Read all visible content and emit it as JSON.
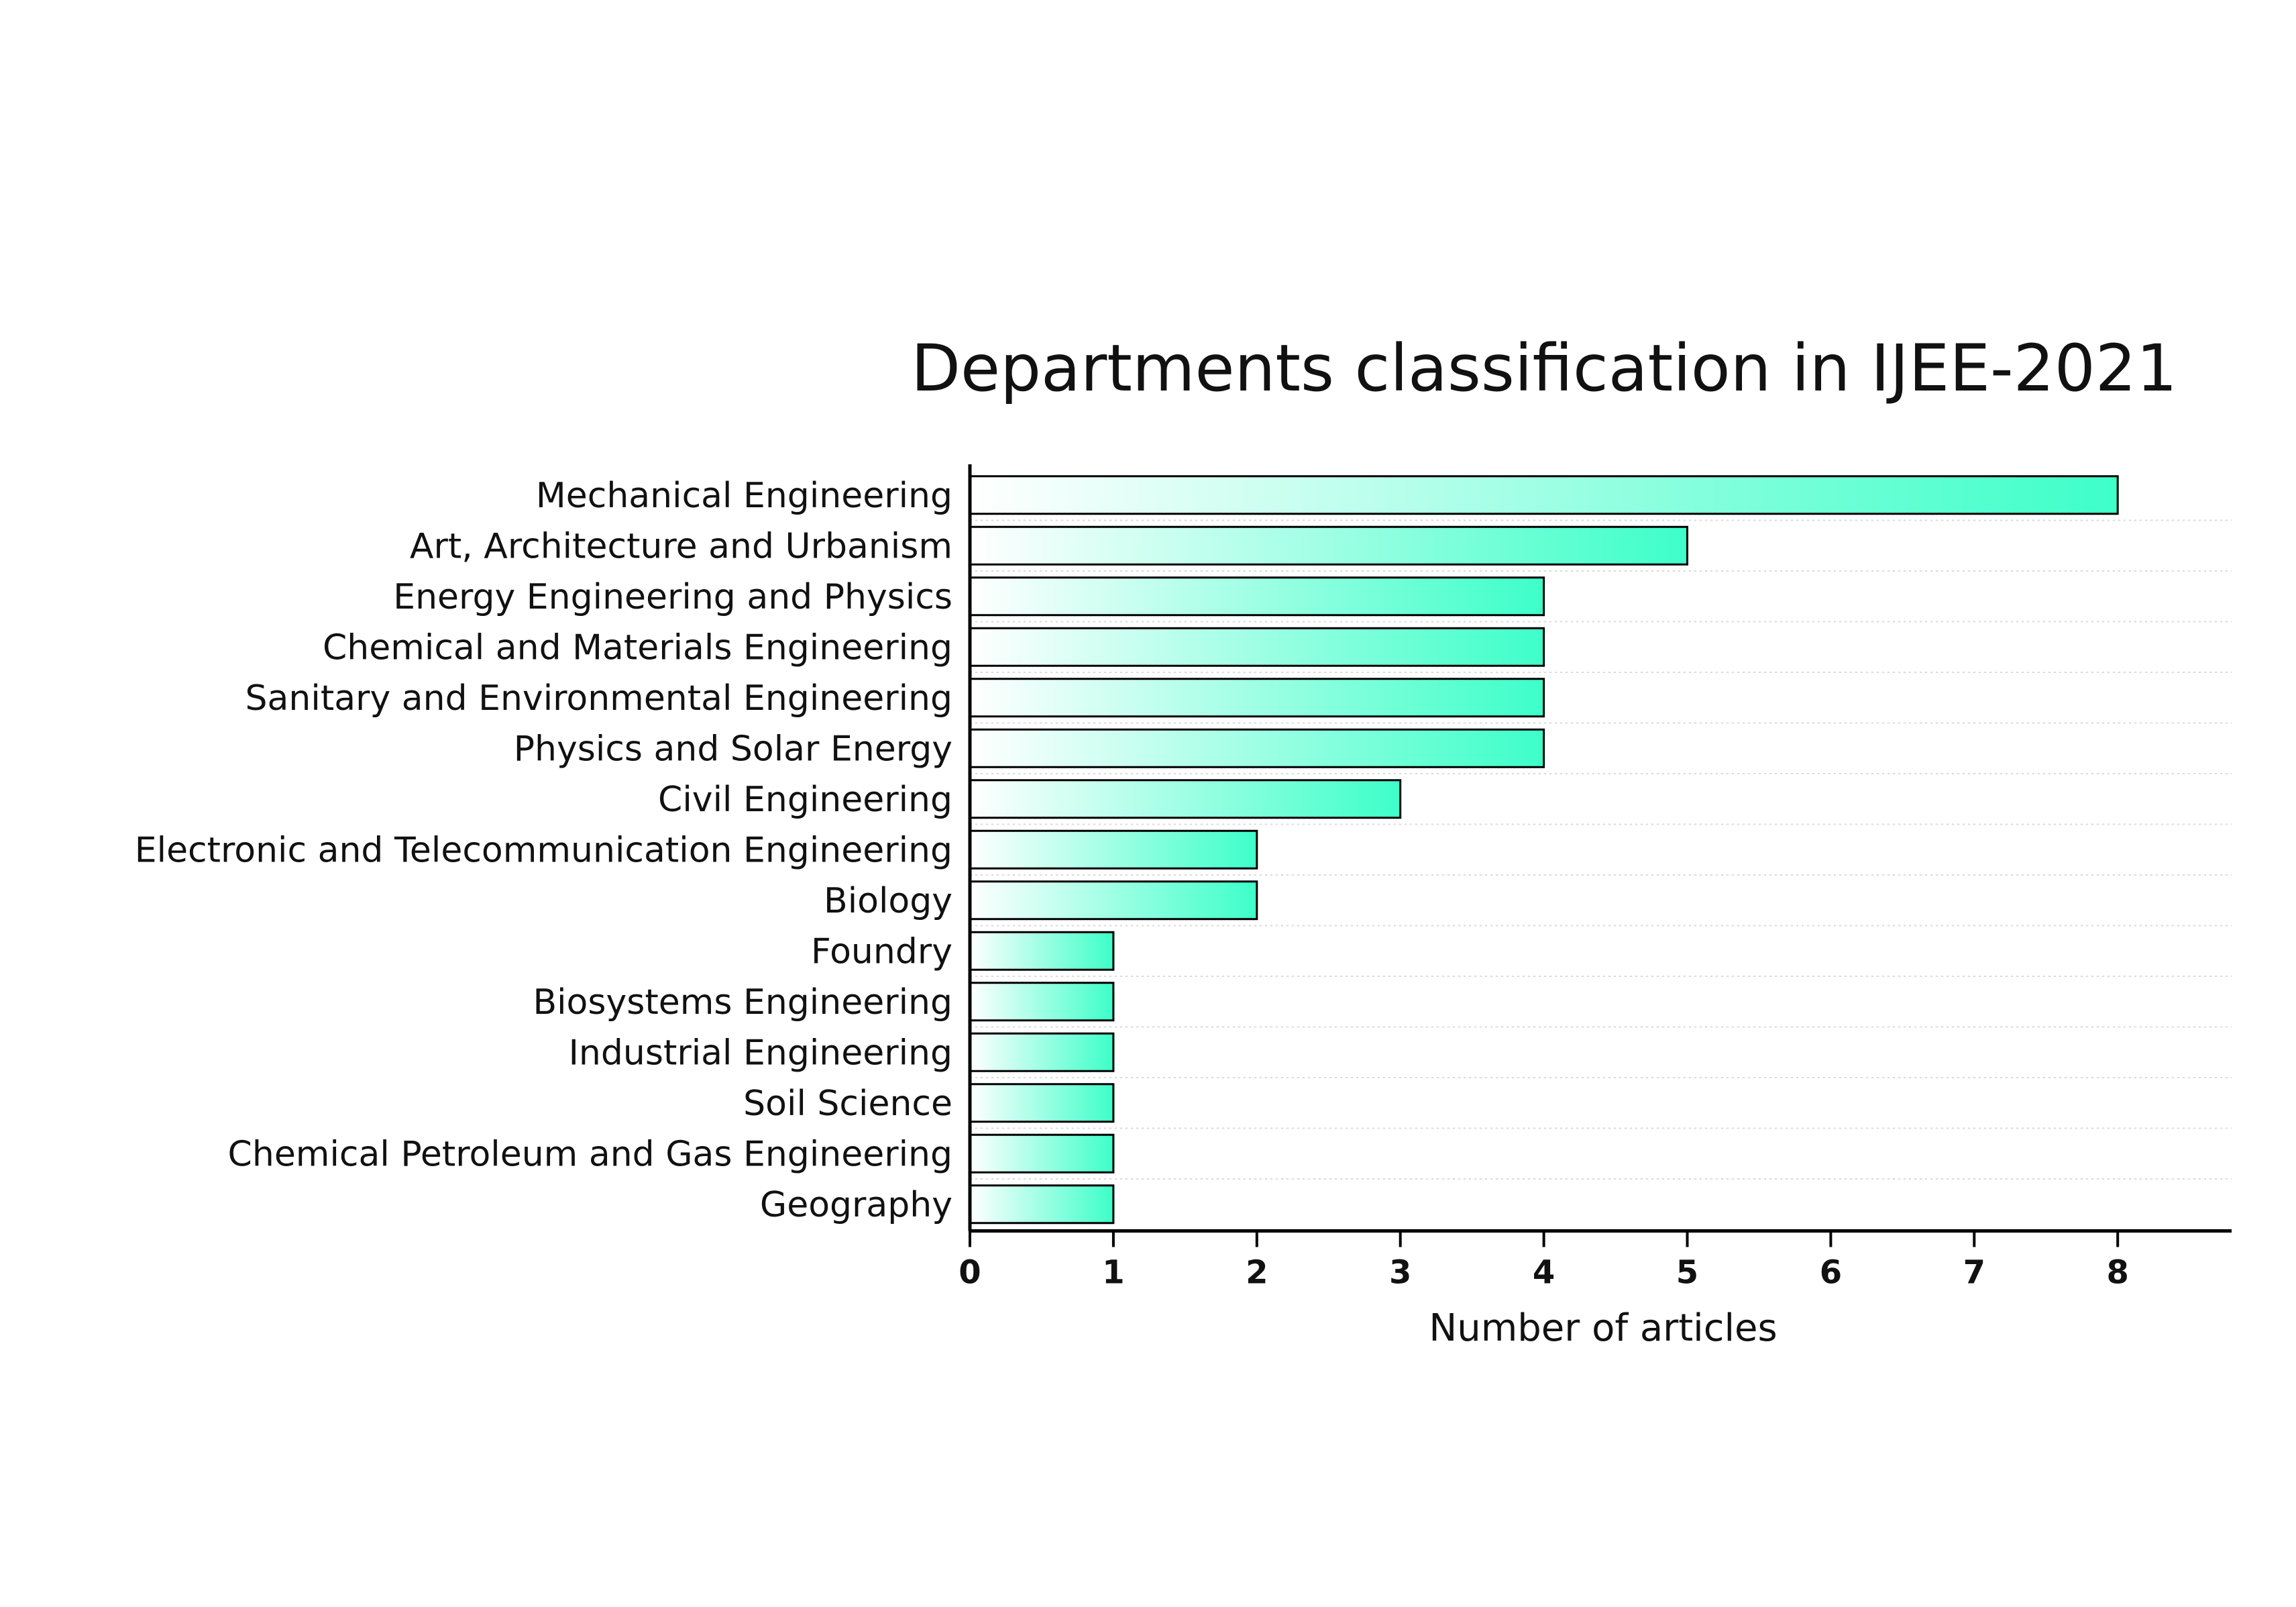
{
  "chart_data": {
    "type": "bar",
    "orientation": "horizontal",
    "title": "Departments classification in IJEE-2021",
    "xlabel": "Number of articles",
    "ylabel": "",
    "categories": [
      "Mechanical Engineering",
      "Art, Architecture and Urbanism",
      "Energy Engineering and Physics",
      "Chemical and Materials Engineering",
      "Sanitary and Environmental Engineering",
      "Physics and Solar Energy",
      "Civil Engineering",
      "Electronic and Telecommunication Engineering",
      "Biology",
      "Foundry",
      "Biosystems Engineering",
      "Industrial Engineering",
      "Soil Science",
      "Chemical Petroleum and Gas Engineering",
      "Geography"
    ],
    "values": [
      8,
      5,
      4,
      4,
      4,
      4,
      3,
      2,
      2,
      1,
      1,
      1,
      1,
      1,
      1
    ],
    "xlim": [
      0,
      8.8
    ],
    "xticks": [
      "0",
      "1",
      "2",
      "3",
      "4",
      "5",
      "6",
      "7",
      "8"
    ],
    "grid": "horizontal dotted",
    "legend": "none",
    "colors": {
      "bar_gradient_start": "#ffffff",
      "bar_gradient_end": "#3dffc9",
      "bar_outline": "#000000",
      "grid": "#d9d9d9",
      "axis": "#000000"
    }
  }
}
